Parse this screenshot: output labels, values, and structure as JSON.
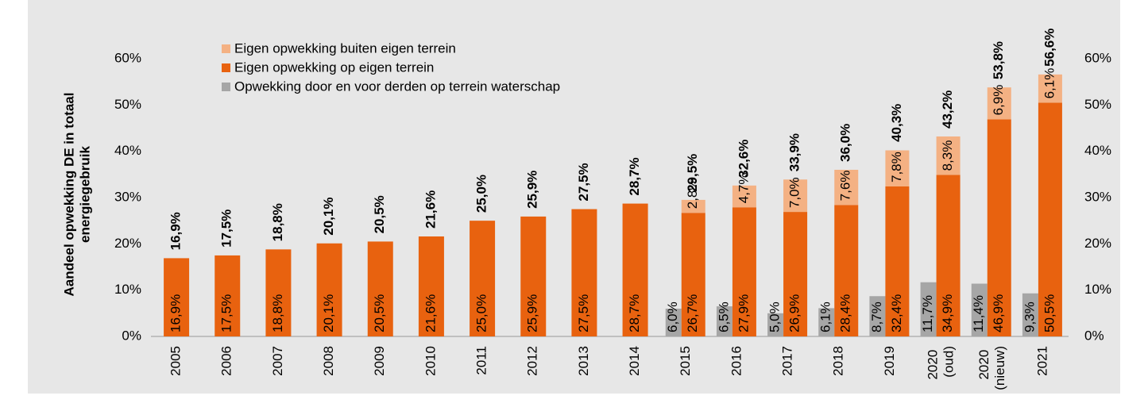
{
  "chart_data": {
    "type": "bar",
    "ylabel": [
      "Aandeel opwekking DE in totaal",
      "energiegebruik"
    ],
    "categories": [
      "2005",
      "2006",
      "2007",
      "2008",
      "2009",
      "2010",
      "2011",
      "2012",
      "2013",
      "2014",
      "2015",
      "2016",
      "2017",
      "2018",
      "2019",
      "2020 (oud)",
      "2020 (nieuw)",
      "2021"
    ],
    "series": [
      {
        "name": "Eigen opwekking buiten eigen terrein",
        "color": "#f4b183",
        "stack": "eigen",
        "values": [
          null,
          null,
          null,
          null,
          null,
          null,
          null,
          null,
          null,
          null,
          2.8,
          4.7,
          7.0,
          7.6,
          7.8,
          8.3,
          6.9,
          6.1
        ],
        "value_labels": [
          null,
          null,
          null,
          null,
          null,
          null,
          null,
          null,
          null,
          null,
          "2,8%",
          "4,7%",
          "7,0%",
          "7,6%",
          "7,8%",
          "8,3%",
          "6,9%",
          "6,1%"
        ]
      },
      {
        "name": "Eigen opwekking op eigen terrein",
        "color": "#e8620f",
        "stack": "eigen",
        "values": [
          16.9,
          17.5,
          18.8,
          20.1,
          20.5,
          21.6,
          25.0,
          25.9,
          27.5,
          28.7,
          26.7,
          27.9,
          26.9,
          28.4,
          32.4,
          34.9,
          46.9,
          50.5
        ],
        "value_labels": [
          "16,9%",
          "17,5%",
          "18,8%",
          "20,1%",
          "20,5%",
          "21,6%",
          "25,0%",
          "25,9%",
          "27,5%",
          "28,7%",
          "26,7%",
          "27,9%",
          "26,9%",
          "28,4%",
          "32,4%",
          "34,9%",
          "46,9%",
          "50,5%"
        ]
      },
      {
        "name": "Opwekking door en voor derden op terrein waterschap",
        "color": "#a6a6a6",
        "stack": "derden",
        "values": [
          null,
          null,
          null,
          null,
          null,
          null,
          null,
          null,
          null,
          null,
          6.0,
          6.5,
          5.0,
          6.1,
          8.7,
          11.7,
          11.4,
          9.3
        ],
        "value_labels": [
          null,
          null,
          null,
          null,
          null,
          null,
          null,
          null,
          null,
          null,
          "6,0%",
          "6,5%",
          "5,0%",
          "6,1%",
          "8,7%",
          "11,7%",
          "11,4%",
          "9,3%"
        ]
      }
    ],
    "totals": {
      "values": [
        16.9,
        17.5,
        18.8,
        20.1,
        20.5,
        21.6,
        25.0,
        25.9,
        27.5,
        28.7,
        29.5,
        32.6,
        33.9,
        36.0,
        40.3,
        43.2,
        53.8,
        56.6
      ],
      "value_labels": [
        "16,9%",
        "17,5%",
        "18,8%",
        "20,1%",
        "20,5%",
        "21,6%",
        "25,0%",
        "25,9%",
        "27,5%",
        "28,7%",
        "29,5%",
        "32,6%",
        "33,9%",
        "36,0%",
        "40,3%",
        "43,2%",
        "53,8%",
        "56,6%"
      ]
    },
    "ylim": [
      0,
      60
    ],
    "yticks": [
      {
        "value": 0,
        "label": "0%"
      },
      {
        "value": 10,
        "label": "10%"
      },
      {
        "value": 20,
        "label": "20%"
      },
      {
        "value": 30,
        "label": "30%"
      },
      {
        "value": 40,
        "label": "40%"
      },
      {
        "value": 50,
        "label": "50%"
      },
      {
        "value": 60,
        "label": "60%"
      }
    ],
    "y2lim": [
      0,
      60
    ],
    "y2ticks": [
      {
        "value": 0,
        "label": "0%"
      },
      {
        "value": 10,
        "label": "10%"
      },
      {
        "value": 20,
        "label": "20%"
      },
      {
        "value": 30,
        "label": "30%"
      },
      {
        "value": 40,
        "label": "40%"
      },
      {
        "value": 50,
        "label": "50%"
      },
      {
        "value": 60,
        "label": "60%"
      }
    ],
    "legend": "top-left"
  }
}
